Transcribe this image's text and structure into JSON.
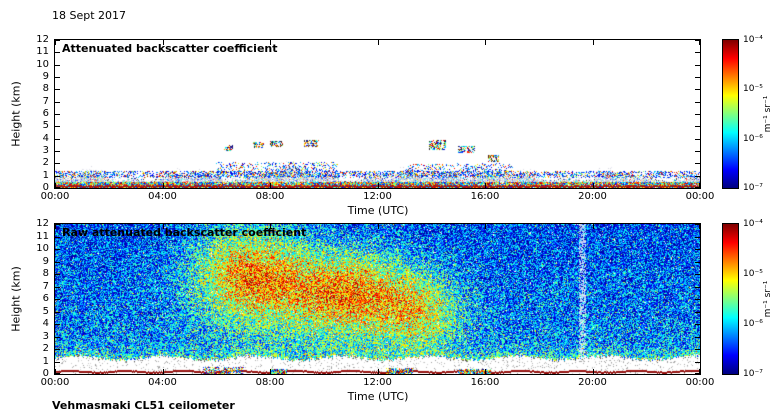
{
  "page": {
    "date_label": "18 Sept 2017",
    "footer_label": "Vehmasmaki CL51 ceilometer",
    "background": "#ffffff"
  },
  "chart_data": [
    {
      "type": "heatmap",
      "title": "Attenuated backscatter coefficient",
      "xlabel": "Time (UTC)",
      "ylabel": "Height (km)",
      "xlim_hours": [
        0,
        24
      ],
      "ylim_km": [
        0,
        12
      ],
      "x_tick_hours": [
        0,
        4,
        8,
        12,
        16,
        20,
        24
      ],
      "x_tick_labels": [
        "00:00",
        "04:00",
        "08:00",
        "12:00",
        "16:00",
        "20:00",
        "00:00"
      ],
      "y_tick_km": [
        0,
        1,
        2,
        3,
        4,
        5,
        6,
        7,
        8,
        9,
        10,
        11,
        12
      ],
      "grid": false,
      "colorbar": {
        "label": "m⁻¹ sr⁻¹",
        "tick_labels": [
          "10⁻⁴",
          "10⁻⁵",
          "10⁻⁶",
          "10⁻⁷"
        ],
        "range_log10": [
          -7,
          -4
        ],
        "colormap": "jet",
        "stops_low_to_high": [
          "#00007f",
          "#0000ff",
          "#00ffff",
          "#ffff00",
          "#ff0000",
          "#7f0000"
        ]
      },
      "content": {
        "background": "#ffffff",
        "boundary_layer_top_km": 1.0,
        "boundary_layer_top_max_km": 1.8,
        "ground_return_km": 0.05,
        "cloud_layers": [
          {
            "hours": [
              6.3,
              6.6
            ],
            "km": [
              3.1,
              3.5
            ]
          },
          {
            "hours": [
              7.35,
              7.75
            ],
            "km": [
              3.3,
              3.7
            ]
          },
          {
            "hours": [
              8.0,
              8.45
            ],
            "km": [
              3.4,
              3.8
            ]
          },
          {
            "hours": [
              9.25,
              9.8
            ],
            "km": [
              3.4,
              3.9
            ]
          },
          {
            "hours": [
              13.9,
              14.5
            ],
            "km": [
              3.2,
              3.9
            ]
          },
          {
            "hours": [
              15.0,
              15.6
            ],
            "km": [
              2.9,
              3.4
            ]
          },
          {
            "hours": [
              16.1,
              16.5
            ],
            "km": [
              2.2,
              2.7
            ]
          }
        ],
        "speckle_regions": [
          {
            "hours": [
              6.0,
              10.5
            ],
            "km": [
              1.0,
              2.1
            ]
          },
          {
            "hours": [
              13.0,
              17.0
            ],
            "km": [
              1.0,
              2.0
            ]
          },
          {
            "hours": [
              0.0,
              24.0
            ],
            "km": [
              0.9,
              1.4
            ]
          }
        ]
      }
    },
    {
      "type": "heatmap",
      "title": "Raw attenuated backscatter coefficient",
      "xlabel": "Time (UTC)",
      "ylabel": "Height (km)",
      "xlim_hours": [
        0,
        24
      ],
      "ylim_km": [
        0,
        12
      ],
      "x_tick_hours": [
        0,
        4,
        8,
        12,
        16,
        20,
        24
      ],
      "x_tick_labels": [
        "00:00",
        "04:00",
        "08:00",
        "12:00",
        "16:00",
        "20:00",
        "00:00"
      ],
      "y_tick_km": [
        0,
        1,
        2,
        3,
        4,
        5,
        6,
        7,
        8,
        9,
        10,
        11,
        12
      ],
      "grid": false,
      "colorbar": {
        "label": "m⁻¹ sr⁻¹",
        "tick_labels": [
          "10⁻⁴",
          "10⁻⁵",
          "10⁻⁶",
          "10⁻⁷"
        ],
        "range_log10": [
          -7,
          -4
        ],
        "colormap": "jet",
        "stops_low_to_high": [
          "#00007f",
          "#0000ff",
          "#00ffff",
          "#ffff00",
          "#ff0000",
          "#7f0000"
        ]
      },
      "content": {
        "noise_floor": "blue-green speckle over full height range",
        "plumes": [
          {
            "center_hour": 7.2,
            "sigma_hours": 1.5,
            "km": [
              4,
              12
            ],
            "intensity": 0.5
          },
          {
            "center_hour": 10.9,
            "sigma_hours": 1.7,
            "km": [
              3,
              10
            ],
            "intensity": 0.5
          },
          {
            "center_hour": 13.6,
            "sigma_hours": 1.1,
            "km": [
              2,
              8
            ],
            "intensity": 0.3
          }
        ],
        "white_band_km": [
          0.2,
          1.4
        ],
        "ground_return_km": 0.25,
        "bright_streak_hour": 19.6,
        "surface_patches": [
          {
            "hours": [
              5.5,
              7.0
            ],
            "km": [
              0,
              0.6
            ]
          },
          {
            "hours": [
              8.0,
              8.6
            ],
            "km": [
              0,
              0.4
            ]
          },
          {
            "hours": [
              12.3,
              13.3
            ],
            "km": [
              0,
              0.5
            ]
          },
          {
            "hours": [
              15.0,
              16.2
            ],
            "km": [
              0,
              0.4
            ]
          }
        ]
      }
    }
  ]
}
